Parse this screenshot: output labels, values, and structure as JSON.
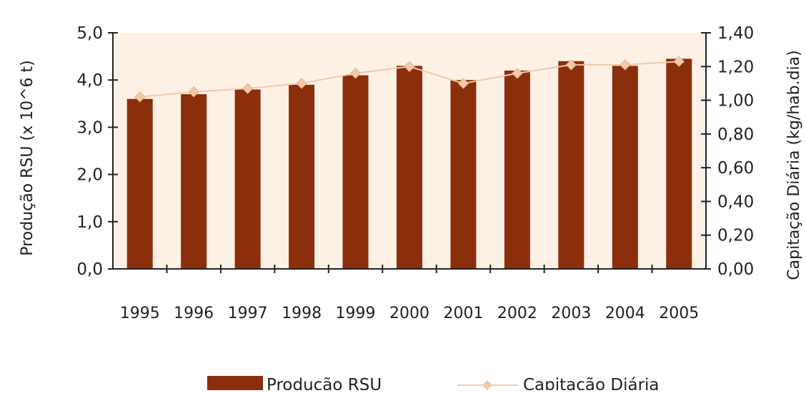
{
  "chart_data": {
    "type": "bar",
    "categories": [
      "1995",
      "1996",
      "1997",
      "1998",
      "1999",
      "2000",
      "2001",
      "2002",
      "2003",
      "2004",
      "2005"
    ],
    "series": [
      {
        "name": "Producão RSU",
        "type": "bar",
        "axis": "left",
        "color": "#8b2e0c",
        "values": [
          3.6,
          3.7,
          3.8,
          3.9,
          4.1,
          4.3,
          4.0,
          4.2,
          4.4,
          4.3,
          4.45
        ]
      },
      {
        "name": "Capitação Diária",
        "type": "line",
        "axis": "right",
        "color": "#f2c9a8",
        "values": [
          1.02,
          1.05,
          1.07,
          1.1,
          1.16,
          1.2,
          1.1,
          1.16,
          1.21,
          1.21,
          1.23
        ]
      }
    ],
    "ylabel": "Produção RSU (x 10^6 t)",
    "y2label": "Capitação  Diária  (kg/hab.dia)",
    "ylim": [
      0,
      5
    ],
    "y2lim": [
      0,
      1.4
    ],
    "yticks": [
      "0,0",
      "1,0",
      "2,0",
      "3,0",
      "4,0",
      "5,0"
    ],
    "y2ticks": [
      "0,00",
      "0,20",
      "0,40",
      "0,60",
      "0,80",
      "1,00",
      "1,20",
      "1,40"
    ],
    "legend_position": "bottom",
    "plot_background": "#fdf1e6",
    "grid": false
  }
}
